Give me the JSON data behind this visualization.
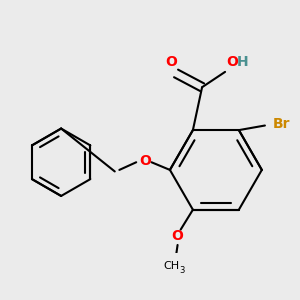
{
  "background_color": "#ebebeb",
  "bond_color": "#000000",
  "bond_width": 1.5,
  "atom_colors": {
    "O": "#ff0000",
    "Br": "#cc8800",
    "H": "#4a9090",
    "C": "#000000"
  },
  "font_size_atom": 9,
  "fig_width": 3.0,
  "fig_height": 3.0,
  "xlim": [
    -0.92,
    1.02
  ],
  "ylim": [
    -0.72,
    0.62
  ]
}
